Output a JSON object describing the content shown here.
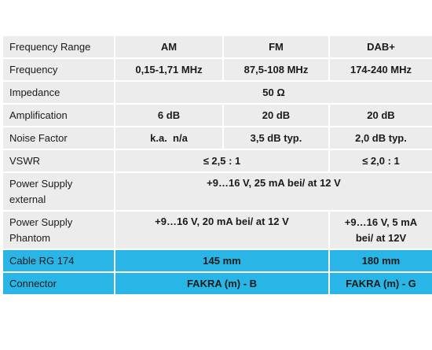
{
  "table": {
    "header": {
      "label": "Frequency Range",
      "am": "AM",
      "fm": "FM",
      "dab": "DAB+"
    },
    "frequency": {
      "label": "Frequency",
      "am": "0,15-1,71 MHz",
      "fm": "87,5-108 MHz",
      "dab": "174-240 MHz"
    },
    "impedance": {
      "label": "Impedance",
      "value": "50 Ω"
    },
    "amplification": {
      "label": "Amplification",
      "am": "6 dB",
      "fm": "20 dB",
      "dab": "20 dB"
    },
    "noise_factor": {
      "label": "Noise Factor",
      "am": "k.a.  n/a",
      "fm": "3,5 dB typ.",
      "dab": "2,0 dB typ."
    },
    "vswr": {
      "label": "VSWR",
      "am_fm": "≤ 2,5 : 1",
      "dab": "≤ 2,0 : 1"
    },
    "power_external": {
      "label_line1": "Power Supply",
      "label_line2": "external",
      "value": "+9…16 V, 25 mA bei/ at 12 V"
    },
    "power_phantom": {
      "label_line1": "Power Supply",
      "label_line2": "Phantom",
      "am_fm": "+9…16 V, 20 mA bei/ at 12 V",
      "dab_line1": "+9…16 V, 5 mA",
      "dab_line2": "bei/ at 12V"
    },
    "cable": {
      "label": "Cable RG 174",
      "am_fm": "145 mm",
      "dab": "180 mm"
    },
    "connector": {
      "label": "Connector",
      "am_fm": "FAKRA (m) - B",
      "dab": "FAKRA (m) - G"
    },
    "colors": {
      "row_bg": "#ececec",
      "highlight_bg": "#29b6e6",
      "divider": "#ffffff"
    }
  }
}
